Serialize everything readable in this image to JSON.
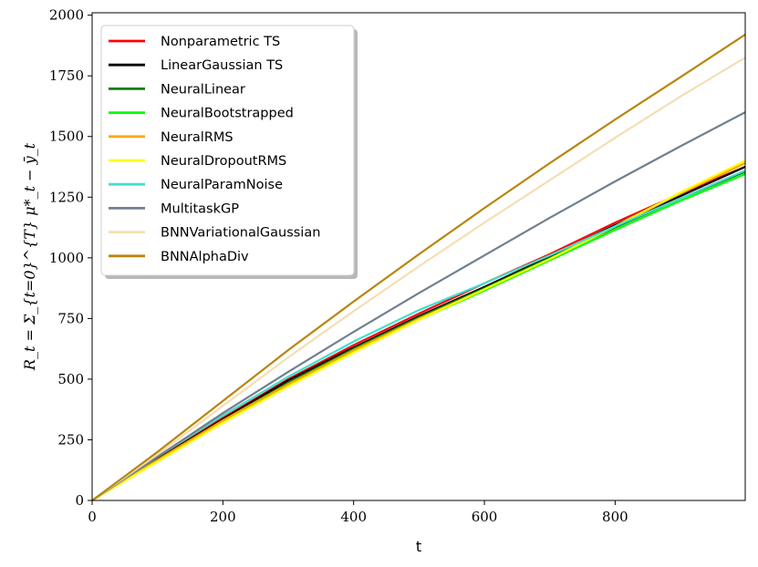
{
  "chart_data": {
    "type": "line",
    "title": "",
    "xlabel": "t",
    "ylabel": "R_t = Σ_{t=0}^{T} μ*_t − ȳ_t",
    "xlim": [
      0,
      999
    ],
    "ylim": [
      0,
      2010
    ],
    "x_ticks": [
      0,
      200,
      400,
      600,
      800
    ],
    "y_ticks": [
      0,
      250,
      500,
      750,
      1000,
      1250,
      1500,
      1750,
      2000
    ],
    "grid": false,
    "legend": "top-left",
    "x": [
      0,
      100,
      200,
      300,
      400,
      500,
      600,
      700,
      800,
      900,
      999
    ],
    "series": [
      {
        "name": "Nonparametric TS",
        "color": "#ff0000",
        "values": [
          0,
          175,
          340,
          500,
          640,
          770,
          895,
          1015,
          1145,
          1265,
          1375
        ]
      },
      {
        "name": "LinearGaussian TS",
        "color": "#000000",
        "values": [
          0,
          170,
          335,
          495,
          630,
          760,
          880,
          1005,
          1135,
          1255,
          1375
        ]
      },
      {
        "name": "NeuralLinear",
        "color": "#008000",
        "values": [
          0,
          168,
          330,
          485,
          625,
          755,
          875,
          1000,
          1125,
          1245,
          1355
        ]
      },
      {
        "name": "NeuralBootstrapped",
        "color": "#00ff00",
        "values": [
          0,
          165,
          320,
          475,
          615,
          745,
          865,
          990,
          1115,
          1235,
          1345
        ]
      },
      {
        "name": "NeuralRMS",
        "color": "#ffa500",
        "values": [
          0,
          167,
          330,
          480,
          620,
          750,
          870,
          995,
          1130,
          1265,
          1390
        ]
      },
      {
        "name": "NeuralDropoutRMS",
        "color": "#ffff00",
        "values": [
          0,
          160,
          320,
          470,
          610,
          745,
          870,
          995,
          1130,
          1270,
          1400
        ]
      },
      {
        "name": "NeuralParamNoise",
        "color": "#40e0d0",
        "values": [
          0,
          180,
          350,
          510,
          655,
          785,
          895,
          1010,
          1130,
          1245,
          1360
        ]
      },
      {
        "name": "MultitaskGP",
        "color": "#708090",
        "values": [
          0,
          180,
          360,
          530,
          695,
          855,
          1010,
          1165,
          1315,
          1460,
          1600
        ]
      },
      {
        "name": "BNNVariationalGaussian",
        "color": "#f5deb3",
        "values": [
          0,
          190,
          390,
          590,
          780,
          965,
          1145,
          1320,
          1495,
          1665,
          1825
        ]
      },
      {
        "name": "BNNAlphaDiv",
        "color": "#b8860b",
        "values": [
          0,
          200,
          410,
          620,
          820,
          1015,
          1205,
          1390,
          1570,
          1745,
          1920
        ]
      }
    ]
  }
}
